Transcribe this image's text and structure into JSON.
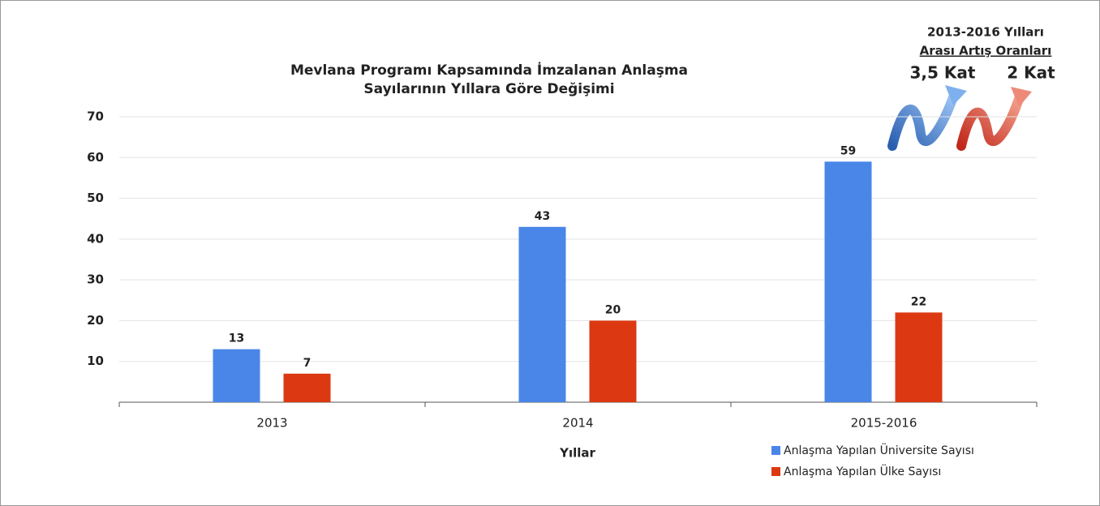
{
  "chart_data": {
    "type": "bar",
    "title": [
      "Mevlana Programı Kapsamında İmzalanan Anlaşma",
      "Sayılarının Yıllara Göre Değişimi"
    ],
    "x_label": "Yıllar",
    "categories": [
      "2013",
      "2014",
      "2015-2016"
    ],
    "series": [
      {
        "name": "Anlaşma Yapılan Üniversite Sayısı",
        "color": "#4a86e8",
        "values": [
          13,
          43,
          59
        ]
      },
      {
        "name": "Anlaşma Yapılan Ülke Sayısı",
        "color": "#dc3912",
        "values": [
          7,
          20,
          22
        ]
      }
    ],
    "ylim": [
      0,
      70
    ],
    "yticks": [
      10,
      20,
      30,
      40,
      50,
      60,
      70
    ],
    "grid": true,
    "annotation": {
      "title": [
        "2013-2016 Yılları",
        "Arası Artış Oranları"
      ],
      "labels": [
        "3,5 Kat",
        "2 Kat"
      ]
    }
  }
}
